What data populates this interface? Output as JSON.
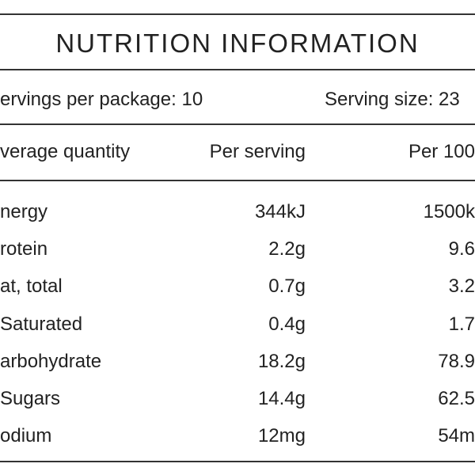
{
  "title": "NUTRITION INFORMATION",
  "servings": {
    "left": "ervings per package: 10",
    "right": "Serving size: 23"
  },
  "table": {
    "header": [
      "verage quantity",
      "Per serving",
      "Per 100"
    ],
    "rows": [
      [
        "nergy",
        "344kJ",
        "1500k"
      ],
      [
        "rotein",
        "2.2g",
        "9.6"
      ],
      [
        "at, total",
        "0.7g",
        "3.2"
      ],
      [
        "Saturated",
        "0.4g",
        "1.7"
      ],
      [
        "arbohydrate",
        "18.2g",
        "78.9"
      ],
      [
        "Sugars",
        "14.4g",
        "62.5"
      ],
      [
        "odium",
        "12mg",
        "54m"
      ]
    ]
  }
}
